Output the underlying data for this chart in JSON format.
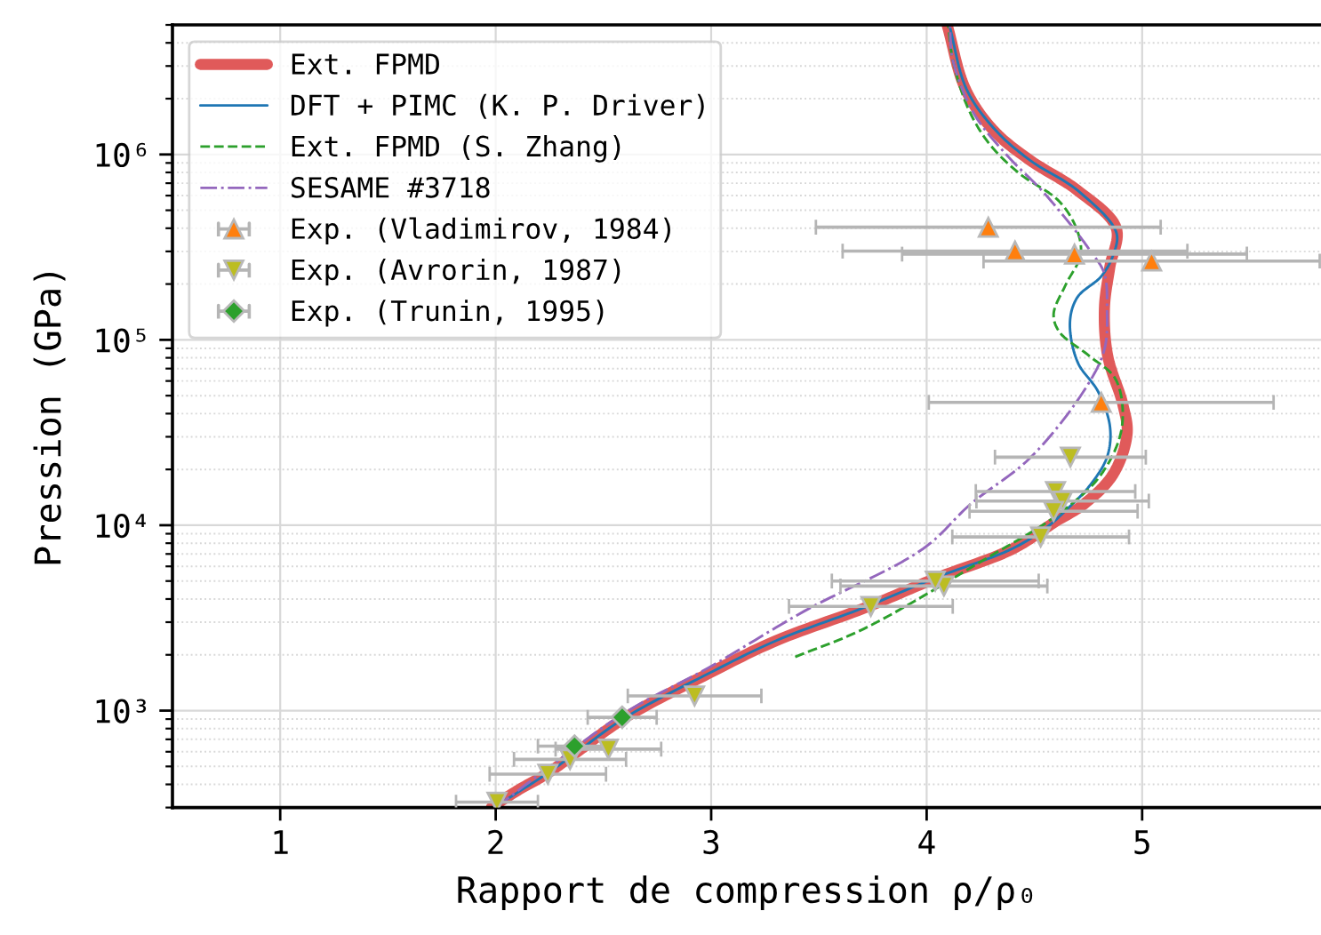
{
  "chart_data": {
    "type": "line",
    "xlabel": "Rapport de compression ρ/ρ₀",
    "ylabel": "Pression (GPa)",
    "xlim": [
      0.5,
      5.83
    ],
    "xticks": [
      1,
      2,
      3,
      4,
      5
    ],
    "ylim": [
      300,
      5000000
    ],
    "yticks": [
      {
        "value": 300,
        "label": null
      },
      {
        "value": 400,
        "label": null
      },
      {
        "value": 500,
        "label": null
      },
      {
        "value": 600,
        "label": null
      },
      {
        "value": 700,
        "label": null
      },
      {
        "value": 800,
        "label": null
      },
      {
        "value": 900,
        "label": null
      },
      {
        "value": 1000,
        "label": "10³"
      },
      {
        "value": 2000,
        "label": null
      },
      {
        "value": 3000,
        "label": null
      },
      {
        "value": 4000,
        "label": null
      },
      {
        "value": 5000,
        "label": null
      },
      {
        "value": 6000,
        "label": null
      },
      {
        "value": 7000,
        "label": null
      },
      {
        "value": 8000,
        "label": null
      },
      {
        "value": 9000,
        "label": null
      },
      {
        "value": 10000,
        "label": "10⁴"
      },
      {
        "value": 20000,
        "label": null
      },
      {
        "value": 30000,
        "label": null
      },
      {
        "value": 40000,
        "label": null
      },
      {
        "value": 50000,
        "label": null
      },
      {
        "value": 60000,
        "label": null
      },
      {
        "value": 70000,
        "label": null
      },
      {
        "value": 80000,
        "label": null
      },
      {
        "value": 90000,
        "label": null
      },
      {
        "value": 100000,
        "label": "10⁵"
      },
      {
        "value": 200000,
        "label": null
      },
      {
        "value": 300000,
        "label": null
      },
      {
        "value": 400000,
        "label": null
      },
      {
        "value": 500000,
        "label": null
      },
      {
        "value": 600000,
        "label": null
      },
      {
        "value": 700000,
        "label": null
      },
      {
        "value": 800000,
        "label": null
      },
      {
        "value": 900000,
        "label": null
      },
      {
        "value": 1000000,
        "label": "10⁶"
      },
      {
        "value": 2000000,
        "label": null
      },
      {
        "value": 3000000,
        "label": null
      },
      {
        "value": 4000000,
        "label": null
      },
      {
        "value": 5000000,
        "label": null
      }
    ],
    "log": "y",
    "grid": true,
    "legend": "top left",
    "series": [
      {
        "name": "Ext. FPMD",
        "color": "#e05a5a",
        "x": [
          1.98,
          2.1,
          2.234,
          2.37,
          2.6,
          2.99,
          3.3,
          3.71,
          4.04,
          4.4,
          4.6,
          4.73,
          4.865,
          4.93,
          4.91,
          4.84,
          4.825,
          4.85,
          4.88,
          4.7,
          4.48,
          4.31,
          4.18,
          4.095
        ],
        "values": [
          300,
          370,
          454,
          589,
          915,
          1590,
          2380,
          3570,
          5160,
          7460,
          10500,
          13000,
          18800,
          31000,
          45000,
          82000,
          148000,
          247000,
          400000,
          640000,
          930000,
          1350000,
          2250000,
          5000000
        ]
      },
      {
        "name": "DFT + PIMC (K. P. Driver)",
        "color": "#1f77b4",
        "x": [
          1.99,
          2.234,
          2.37,
          2.6,
          2.99,
          3.3,
          3.71,
          4.04,
          4.4,
          4.56,
          4.645,
          4.754,
          4.837,
          4.851,
          4.796,
          4.7,
          4.665,
          4.7,
          4.81,
          4.865,
          4.88,
          4.7,
          4.48,
          4.32,
          4.185,
          4.105
        ],
        "values": [
          300,
          454,
          589,
          915,
          1590,
          2380,
          3600,
          5200,
          7500,
          9800,
          12000,
          16200,
          23300,
          33800,
          52500,
          76000,
          125000,
          170000,
          220000,
          286000,
          380000,
          640000,
          930000,
          1350000,
          2250000,
          5000000
        ]
      },
      {
        "name": "Ext. FPMD (S. Zhang)",
        "color": "#2ca02c",
        "line_style": "dashed",
        "x": [
          3.39,
          3.708,
          4.259,
          4.617,
          4.81,
          4.906,
          4.878,
          4.754,
          4.617,
          4.589,
          4.645,
          4.714,
          4.7,
          4.617,
          4.424,
          4.286,
          4.19,
          4.121,
          4.1
        ],
        "values": [
          1950,
          2760,
          6440,
          11600,
          18800,
          33800,
          61000,
          82000,
          110000,
          137000,
          198000,
          286000,
          385000,
          556000,
          800000,
          1160000,
          1800000,
          3250000,
          5000000
        ]
      },
      {
        "name": "SESAME #3718",
        "color": "#9467bd",
        "line_style": "dashdot",
        "x": [
          2.0,
          2.3,
          2.606,
          2.99,
          3.432,
          3.983,
          4.204,
          4.479,
          4.727,
          4.824,
          4.837,
          4.824,
          4.754,
          4.672,
          4.534,
          4.369,
          4.217,
          4.121,
          4.107
        ],
        "values": [
          300,
          550,
          985,
          1710,
          3440,
          7460,
          13000,
          23000,
          52500,
          88000,
          148000,
          229000,
          308000,
          413000,
          640000,
          1000000,
          1680000,
          3250000,
          5000000
        ]
      },
      {
        "name": "Exp. (Vladimirov, 1984)",
        "type": "scatter",
        "color": "#ff7f0e",
        "marker": "triangle",
        "x": [
          4.286,
          4.41,
          4.686,
          5.044,
          4.81
        ],
        "values": [
          405000,
          301000,
          290000,
          266000,
          46000
        ],
        "xerrors": [
          0.8,
          0.8,
          0.8,
          0.78,
          0.8
        ]
      },
      {
        "name": "Exp. (Avrorin, 1987)",
        "type": "scatter",
        "color": "#bcbd22",
        "marker": "triangle_down",
        "x": [
          4.667,
          4.598,
          4.631,
          4.589,
          4.529,
          4.08,
          4.04,
          3.741,
          2.923,
          2.523,
          2.345,
          2.242,
          2.006
        ],
        "values": [
          23300,
          15200,
          13500,
          11900,
          8650,
          4700,
          5000,
          3650,
          1200,
          620,
          546,
          454,
          321
        ],
        "xerrors": [
          0.35,
          0.37,
          0.4,
          0.39,
          0.41,
          0.48,
          0.48,
          0.38,
          0.31,
          0.245,
          0.26,
          0.27,
          0.19
        ]
      },
      {
        "name": "Exp. (Trunin, 1995)",
        "type": "scatter",
        "color": "#2ca02c",
        "marker": "diamond",
        "x": [
          2.587,
          2.366
        ],
        "values": [
          920,
          643
        ],
        "xerrors": [
          0.16,
          0.17
        ]
      }
    ]
  }
}
